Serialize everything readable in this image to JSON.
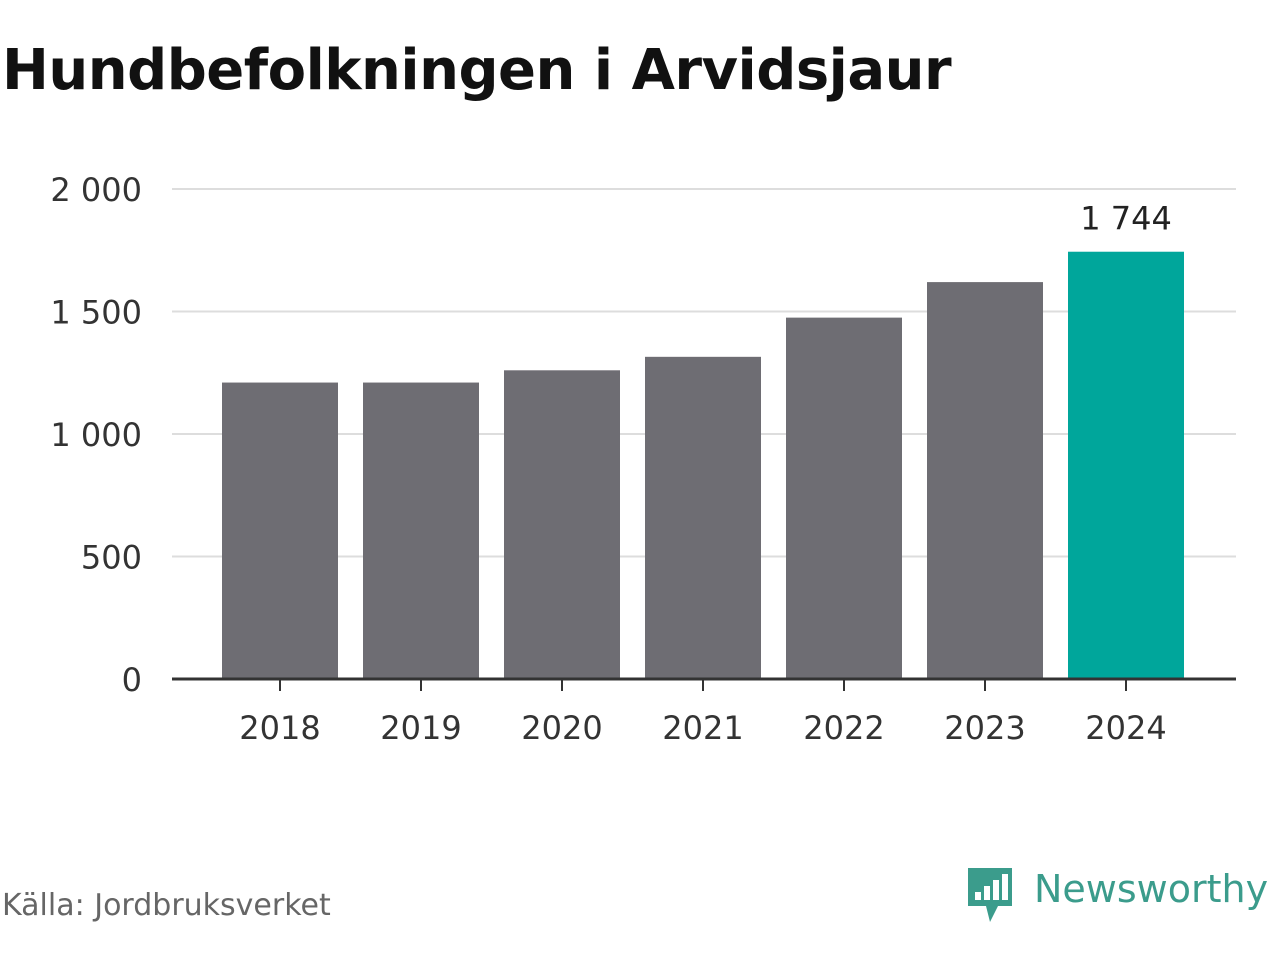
{
  "header": {
    "title": "Hundbefolkningen i Arvidsjaur"
  },
  "chart_data": {
    "type": "bar",
    "title": "Hundbefolkningen i Arvidsjaur",
    "categories": [
      "2018",
      "2019",
      "2020",
      "2021",
      "2022",
      "2023",
      "2024"
    ],
    "values": [
      1210,
      1210,
      1260,
      1315,
      1475,
      1620,
      1744
    ],
    "ylim": [
      0,
      2000
    ],
    "yticks": [
      0,
      500,
      1000,
      1500,
      2000
    ],
    "ytick_labels": [
      "0",
      "500",
      "1 000",
      "1 500",
      "2 000"
    ],
    "data_labels": [
      {
        "category": "2024",
        "text": "1 744"
      }
    ],
    "grid": true,
    "colors": {
      "default": "#6e6d73",
      "highlight": "#00a69b"
    },
    "highlight_category": "2024"
  },
  "footer": {
    "source": "Källa: Jordbruksverket",
    "brand": "Newsworthy",
    "brand_icon": "newsworthy-logo-icon",
    "brand_color": "#3b9c8c"
  }
}
